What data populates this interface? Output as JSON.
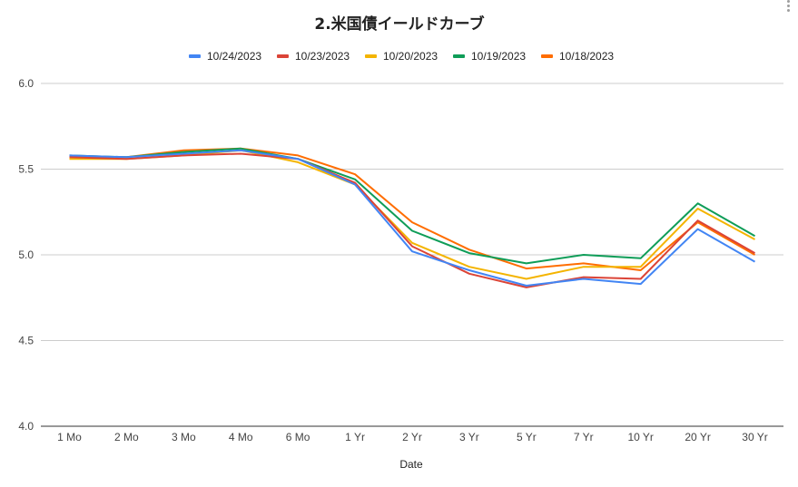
{
  "menu_icon": "more-vert-icon",
  "chart_data": {
    "type": "line",
    "title": "2.米国債イールドカーブ",
    "xlabel": "Date",
    "ylabel": "",
    "categories": [
      "1 Mo",
      "2 Mo",
      "3 Mo",
      "4 Mo",
      "6 Mo",
      "1 Yr",
      "2 Yr",
      "3 Yr",
      "5 Yr",
      "7 Yr",
      "10 Yr",
      "20 Yr",
      "30 Yr"
    ],
    "ylim": [
      4.0,
      6.0
    ],
    "yticks": [
      "4.0",
      "4.5",
      "5.0",
      "5.5",
      "6.0"
    ],
    "grid": true,
    "legend_position": "top",
    "series": [
      {
        "name": "10/24/2023",
        "color": "#4285f4",
        "values": [
          5.58,
          5.57,
          5.59,
          5.61,
          5.56,
          5.41,
          5.02,
          4.91,
          4.82,
          4.86,
          4.83,
          5.15,
          4.96
        ]
      },
      {
        "name": "10/23/2023",
        "color": "#db4437",
        "values": [
          5.57,
          5.56,
          5.58,
          5.59,
          5.56,
          5.42,
          5.05,
          4.89,
          4.81,
          4.87,
          4.86,
          5.2,
          5.01
        ]
      },
      {
        "name": "10/20/2023",
        "color": "#f4b400",
        "values": [
          5.56,
          5.56,
          5.58,
          5.61,
          5.54,
          5.41,
          5.07,
          4.93,
          4.86,
          4.93,
          4.93,
          5.27,
          5.09
        ]
      },
      {
        "name": "10/19/2023",
        "color": "#0f9d58",
        "values": [
          5.58,
          5.57,
          5.6,
          5.62,
          5.56,
          5.44,
          5.14,
          5.01,
          4.95,
          5.0,
          4.98,
          5.3,
          5.11
        ]
      },
      {
        "name": "10/18/2023",
        "color": "#ff6d01",
        "values": [
          5.57,
          5.57,
          5.61,
          5.62,
          5.58,
          5.47,
          5.19,
          5.03,
          4.92,
          4.95,
          4.91,
          5.19,
          5.0
        ]
      }
    ]
  }
}
